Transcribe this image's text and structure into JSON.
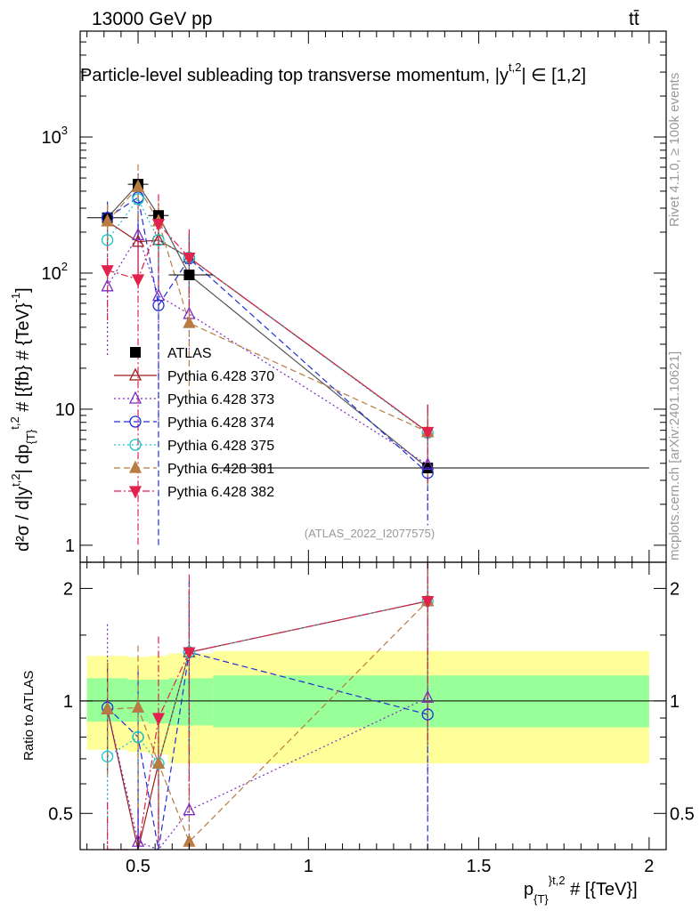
{
  "header": {
    "energy_label": "13000 GeV pp",
    "process_label": "tt̄",
    "title": "Particle-level subleading top transverse momentum, |y",
    "title_sup": "t,2",
    "title_tail": "| ∈ [1,2]",
    "side_label_top": "Rivet 4.1.0, ≥ 100k events",
    "side_label_bottom": "mcplots.cern.ch [arXiv:2401.10621]",
    "watermark": "(ATLAS_2022_I2077575)"
  },
  "axes": {
    "y_main_label": "d²σ / d|y",
    "y_main_sup1": "t,2",
    "y_main_mid": "| dp",
    "y_main_sub": "{T}",
    "y_main_sup2": "t,2",
    "y_main_tail": " # [{fb} # {TeV}",
    "y_main_sup3": "-1",
    "y_main_close": "]",
    "y_ratio_label": "Ratio to ATLAS",
    "x_label_p": "p",
    "x_label_sub": "{T}",
    "x_label_sup": "}",
    "x_label_sup2": "t,2",
    "x_label_tail": " # [{TeV}]",
    "main_ticks": [
      {
        "value": 1,
        "label": "1"
      },
      {
        "value": 10,
        "label": "10"
      },
      {
        "value": 100,
        "label": "10",
        "exp": "2"
      },
      {
        "value": 1000,
        "label": "10",
        "exp": "3"
      }
    ],
    "ratio_ticks": [
      {
        "value": 0.5,
        "label": "0.5"
      },
      {
        "value": 1,
        "label": "1"
      },
      {
        "value": 2,
        "label": "2"
      }
    ],
    "x_ticks": [
      {
        "value": 0.5,
        "label": "0.5"
      },
      {
        "value": 1,
        "label": "1"
      },
      {
        "value": 1.5,
        "label": "1.5"
      },
      {
        "value": 2,
        "label": "2"
      }
    ]
  },
  "chart_data": {
    "type": "scatter",
    "x_range": [
      0.33,
      2.05
    ],
    "y_main_range_log": [
      0.75,
      6000
    ],
    "y_ratio_range_log": [
      0.4,
      2.35
    ],
    "data_bins": [
      {
        "x": 0.41,
        "xlo": 0.35,
        "xhi": 0.47,
        "y": 255
      },
      {
        "x": 0.5,
        "xlo": 0.47,
        "xhi": 0.53,
        "y": 450
      },
      {
        "x": 0.56,
        "xlo": 0.53,
        "xhi": 0.59,
        "y": 265
      },
      {
        "x": 0.65,
        "xlo": 0.59,
        "xhi": 0.72,
        "y": 97
      },
      {
        "x": 1.35,
        "xlo": 0.72,
        "xhi": 2.0,
        "y": 3.7
      }
    ],
    "bands": {
      "inner": [
        [
          0.35,
          0.47,
          0.88,
          1.15
        ],
        [
          0.47,
          0.53,
          0.88,
          1.14
        ],
        [
          0.53,
          0.59,
          0.87,
          1.14
        ],
        [
          0.59,
          0.72,
          0.86,
          1.15
        ],
        [
          0.72,
          2.0,
          0.85,
          1.17
        ]
      ],
      "outer": [
        [
          0.35,
          0.47,
          0.74,
          1.32
        ],
        [
          0.47,
          0.53,
          0.73,
          1.31
        ],
        [
          0.53,
          0.59,
          0.72,
          1.32
        ],
        [
          0.59,
          0.72,
          0.68,
          1.34
        ],
        [
          0.72,
          2.0,
          0.68,
          1.36
        ]
      ]
    },
    "series": [
      {
        "name": "ATLAS",
        "color": "#000000",
        "marker": "square-filled",
        "dash": "",
        "legend_line": false,
        "x": [
          0.41,
          0.5,
          0.56,
          0.65,
          1.35
        ],
        "y": [
          255,
          450,
          265,
          97,
          3.7
        ],
        "ratio": [
          1,
          1,
          1,
          1,
          1
        ],
        "err_lo": [
          15,
          25,
          15,
          6,
          0.3
        ],
        "err_hi": [
          15,
          25,
          15,
          6,
          0.3
        ]
      },
      {
        "name": "Pythia 6.428 370",
        "color": "#9b1c1c",
        "marker": "triangle-up-open",
        "dash": "",
        "legend_line": true,
        "x": [
          0.41,
          0.5,
          0.56,
          0.65,
          1.35
        ],
        "y": [
          240,
          170,
          175,
          130,
          6.8
        ],
        "ratio": [
          0.95,
          0.38,
          0.68,
          1.35,
          1.85
        ],
        "err_lo": [
          80,
          90,
          60,
          60,
          4
        ],
        "err_hi": [
          80,
          90,
          60,
          60,
          4
        ]
      },
      {
        "name": "Pythia 6.428 373",
        "color": "#7b2ac2",
        "marker": "triangle-up-open",
        "dash": "2,3",
        "legend_line": true,
        "x": [
          0.41,
          0.5,
          0.56,
          0.65,
          1.35
        ],
        "y": [
          80,
          190,
          68,
          50,
          3.9
        ],
        "ratio": [
          0.95,
          0.42,
          0.28,
          0.51,
          1.02
        ],
        "err_lo": [
          55,
          120,
          60,
          25,
          2
        ],
        "err_hi": [
          55,
          120,
          60,
          25,
          2
        ]
      },
      {
        "name": "Pythia 6.428 374",
        "color": "#1f2fd6",
        "marker": "circle-open",
        "dash": "7,4",
        "legend_line": true,
        "x": [
          0.41,
          0.5,
          0.56,
          0.65,
          1.35
        ],
        "y": [
          255,
          360,
          58,
          128,
          3.4
        ],
        "ratio": [
          0.96,
          0.8,
          0.22,
          1.35,
          0.92
        ],
        "err_lo": [
          80,
          180,
          57,
          70,
          2
        ],
        "err_hi": [
          80,
          180,
          57,
          70,
          2
        ]
      },
      {
        "name": "Pythia 6.428 375",
        "color": "#19c5c5",
        "marker": "circle-open",
        "dash": "2,3",
        "legend_line": true,
        "x": [
          0.41,
          0.5,
          0.56,
          0.65,
          1.35
        ],
        "y": [
          175,
          350,
          175,
          130,
          6.7
        ],
        "ratio": [
          0.71,
          0.8,
          0.68,
          1.35,
          1.85
        ],
        "err_lo": [
          60,
          120,
          60,
          60,
          4
        ],
        "err_hi": [
          60,
          120,
          60,
          60,
          4
        ]
      },
      {
        "name": "Pythia 6.428 381",
        "color": "#b87b42",
        "marker": "triangle-up-filled",
        "dash": "7,4",
        "legend_line": true,
        "x": [
          0.41,
          0.5,
          0.56,
          0.65,
          1.35
        ],
        "y": [
          240,
          430,
          240,
          43,
          6.8
        ],
        "ratio": [
          0.95,
          0.96,
          0.68,
          0.42,
          1.85
        ],
        "err_lo": [
          80,
          200,
          90,
          30,
          4
        ],
        "err_hi": [
          80,
          200,
          90,
          30,
          4
        ]
      },
      {
        "name": "Pythia 6.428 382",
        "color": "#e0224c",
        "marker": "triangle-down-filled",
        "dash": "8,3,2,3",
        "legend_line": true,
        "x": [
          0.41,
          0.5,
          0.56,
          0.65,
          1.35
        ],
        "y": [
          105,
          90,
          230,
          130,
          6.8
        ],
        "ratio": [
          0.34,
          0.21,
          0.9,
          1.35,
          1.85
        ],
        "err_lo": [
          60,
          89,
          150,
          80,
          4
        ],
        "err_hi": [
          60,
          89,
          150,
          80,
          4
        ]
      }
    ]
  }
}
